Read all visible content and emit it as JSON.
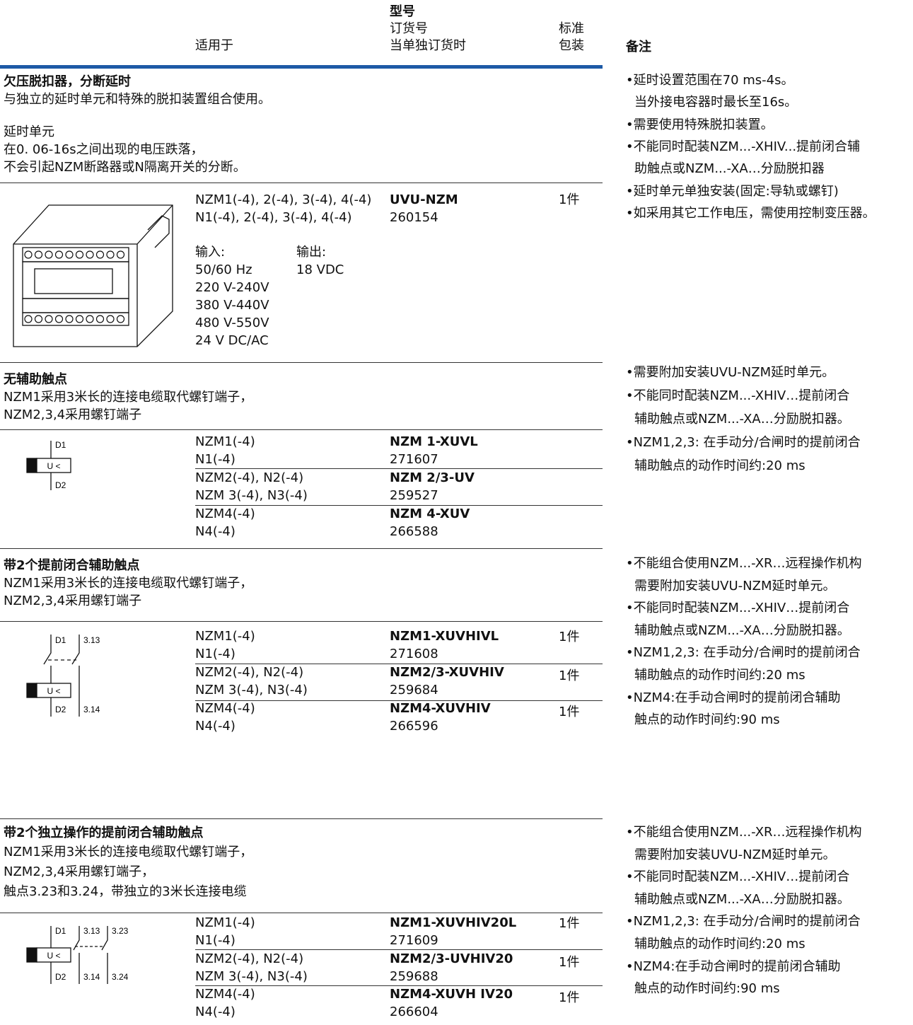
{
  "header": {
    "model": "型号",
    "order_no": "订货号",
    "order_when": "当单独订货时",
    "applies": "适用于",
    "pack": [
      "标准",
      "包装"
    ],
    "remarks": "备注"
  },
  "sections": [
    {
      "title": "欠压脱扣器，分断延时",
      "desc": [
        "与独立的延时单元和特殊的脱扣装置组合使用。"
      ],
      "extra": [
        "延时单元",
        "在0. 06-16s之间出现的电压跌落，",
        "不会引起NZM断路器或N隔离开关的分断。"
      ],
      "rows": [
        {
          "applies": [
            "NZM1(-4), 2(-4), 3(-4), 4(-4)",
            "N1(-4), 2(-4), 3(-4), 4(-4)"
          ],
          "model": "UVU-NZM",
          "order": "260154",
          "pack": "1件"
        }
      ],
      "io": {
        "input_label": "输入:",
        "output_label": "输出:",
        "input": [
          "50/60 Hz",
          "220 V-240V",
          "380 V-440V",
          "480 V-550V",
          "24 V DC/AC"
        ],
        "output": [
          "18 VDC"
        ]
      },
      "notes": [
        [
          "•延时设置范围在70 ms-4s。",
          "当外接电容器时最长至16s。"
        ],
        [
          "•需要使用特殊脱扣装置。"
        ],
        [
          "•不能同时配装NZM...-XHIV...提前闭合辅",
          "助触点或NZM...-XA…分励脱扣器"
        ],
        [
          "•延时单元单独安装(固定:导轨或螺钉)"
        ],
        [
          "•如采用其它工作电压，需使用控制变压器。"
        ]
      ]
    },
    {
      "title": "无辅助触点",
      "desc": [
        "NZM1采用3米长的连接电缆取代螺钉端子，",
        "NZM2,3,4采用螺钉端子"
      ],
      "diagram": {
        "coil": "U <",
        "labels": [
          "D1",
          "D2"
        ]
      },
      "rows": [
        {
          "applies": [
            "NZM1(-4)",
            "N1(-4)"
          ],
          "model": "NZM 1-XUVL",
          "order": "271607"
        },
        {
          "applies": [
            "NZM2(-4), N2(-4)",
            "NZM 3(-4), N3(-4)"
          ],
          "model": "NZM 2/3-UV",
          "order": "259527"
        },
        {
          "applies": [
            "NZM4(-4)",
            "N4(-4)"
          ],
          "model": "NZM 4-XUV",
          "order": "266588"
        }
      ],
      "notes": [
        [
          "•需要附加安装UVU-NZM延时单元。"
        ],
        [
          "•不能同时配装NZM...-XHIV…提前闭合",
          "辅助触点或NZM...-XA…分励脱扣器。"
        ],
        [
          "•NZM1,2,3: 在手动分/合闸时的提前闭合",
          "辅助触点的动作时间约:20 ms"
        ]
      ]
    },
    {
      "title": "带2个提前闭合辅助触点",
      "desc": [
        "NZM1采用3米长的连接电缆取代螺钉端子，",
        "NZM2,3,4采用螺钉端子"
      ],
      "diagram": {
        "coil": "U <",
        "labels": [
          "D1",
          "3.13",
          "D2",
          "3.14"
        ]
      },
      "rows": [
        {
          "applies": [
            "NZM1(-4)",
            "N1(-4)"
          ],
          "model": "NZM1-XUVHIVL",
          "order": "271608",
          "pack": "1件"
        },
        {
          "applies": [
            "NZM2(-4), N2(-4)",
            "NZM 3(-4), N3(-4)"
          ],
          "model": "NZM2/3-XUVHIV",
          "order": "259684",
          "pack": "1件"
        },
        {
          "applies": [
            "NZM4(-4)",
            "N4(-4)"
          ],
          "model": "NZM4-XUVHIV",
          "order": "266596",
          "pack": "1件"
        }
      ],
      "notes": [
        [
          "•不能组合使用NZM...-XR…远程操作机构",
          "需要附加安装UVU-NZM延时单元。"
        ],
        [
          "•不能同时配装NZM...-XHIV…提前闭合",
          "辅助触点或NZM...-XA…分励脱扣器。"
        ],
        [
          "•NZM1,2,3: 在手动分/合闸时的提前闭合",
          "辅助触点的动作时间约:20 ms"
        ],
        [
          "•NZM4:在手动合闸时的提前闭合辅助",
          "触点的动作时间约:90 ms"
        ]
      ]
    },
    {
      "title": "带2个独立操作的提前闭合辅助触点",
      "desc": [
        "NZM1采用3米长的连接电缆取代螺钉端子，",
        "NZM2,3,4采用螺钉端子，",
        "触点3.23和3.24，带独立的3米长连接电缆"
      ],
      "diagram": {
        "coil": "U <",
        "labels": [
          "D1",
          "3.13",
          "3.23",
          "D2",
          "3.14",
          "3.24"
        ]
      },
      "rows": [
        {
          "applies": [
            "NZM1(-4)",
            "N1(-4)"
          ],
          "model": "NZM1-XUVHIV20L",
          "order": "271609",
          "pack": "1件"
        },
        {
          "applies": [
            "NZM2(-4), N2(-4)",
            "NZM 3(-4), N3(-4)"
          ],
          "model": "NZM2/3-UVHIV20",
          "order": "259688",
          "pack": "1件"
        },
        {
          "applies": [
            "NZM4(-4)",
            "N4(-4)"
          ],
          "model": "NZM4-XUVH IV20",
          "order": "266604",
          "pack": "1件"
        }
      ],
      "notes": [
        [
          "•不能组合使用NZM...-XR…远程操作机构",
          "需要附加安装UVU-NZM延时单元。"
        ],
        [
          "•不能同时配装NZM...-XHIV…提前闭合",
          "辅助触点或NZM...-XA…分励脱扣器。"
        ],
        [
          "•NZM1,2,3: 在手动分/合闸时的提前闭合",
          "辅助触点的动作时间约:20 ms"
        ],
        [
          "•NZM4:在手动合闸时的提前闭合辅助",
          "触点的动作时间约:90 ms"
        ]
      ]
    }
  ]
}
